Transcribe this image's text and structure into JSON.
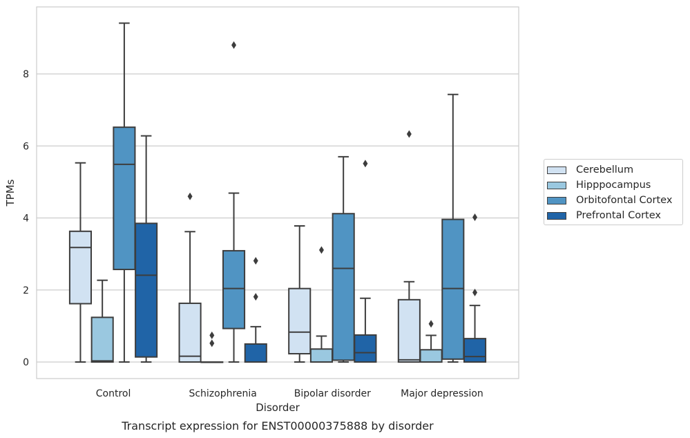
{
  "chart_data": {
    "type": "box",
    "categories": [
      "Control",
      "Schizophrenia",
      "Bipolar disorder",
      "Major depression"
    ],
    "xlabel": "Disorder",
    "ylabel": "TPMs",
    "caption": "Transcript expression for ENST00000375888 by disorder",
    "ylim": [
      -0.45,
      9.75
    ],
    "yticks": [
      0,
      2,
      4,
      6,
      8
    ],
    "ytick_labels": [
      "0",
      "2",
      "4",
      "6",
      "8"
    ],
    "grid": "horizontal",
    "legend_position": "right",
    "series": [
      {
        "name": "Cerebellum",
        "color": "#d1e2f2",
        "boxes": [
          {
            "min": 0.0,
            "q1": 1.62,
            "median": 3.18,
            "q3": 3.63,
            "max": 5.53,
            "outliers": []
          },
          {
            "min": 0.0,
            "q1": 0.0,
            "median": 0.16,
            "q3": 1.63,
            "max": 3.62,
            "outliers": [
              4.6
            ]
          },
          {
            "min": 0.0,
            "q1": 0.23,
            "median": 0.83,
            "q3": 2.04,
            "max": 3.78,
            "outliers": []
          },
          {
            "min": 0.0,
            "q1": 0.0,
            "median": 0.06,
            "q3": 1.73,
            "max": 2.23,
            "outliers": [
              6.33
            ]
          }
        ]
      },
      {
        "name": "Hipppocampus",
        "color": "#9ac8e0",
        "boxes": [
          {
            "min": 0.0,
            "q1": 0.0,
            "median": 0.03,
            "q3": 1.24,
            "max": 2.27,
            "outliers": []
          },
          {
            "min": 0.0,
            "q1": 0.0,
            "median": 0.0,
            "q3": 0.0,
            "max": 0.0,
            "outliers": [
              0.52,
              0.74
            ]
          },
          {
            "min": 0.0,
            "q1": 0.0,
            "median": 0.0,
            "q3": 0.36,
            "max": 0.72,
            "outliers": [
              3.11
            ]
          },
          {
            "min": 0.0,
            "q1": 0.0,
            "median": 0.0,
            "q3": 0.34,
            "max": 0.74,
            "outliers": [
              1.06
            ]
          }
        ]
      },
      {
        "name": "Orbitofontal Cortex",
        "color": "#5094c3",
        "boxes": [
          {
            "min": 0.0,
            "q1": 2.57,
            "median": 5.49,
            "q3": 6.52,
            "max": 9.41,
            "outliers": []
          },
          {
            "min": 0.0,
            "q1": 0.93,
            "median": 2.04,
            "q3": 3.09,
            "max": 4.69,
            "outliers": [
              8.8
            ]
          },
          {
            "min": 0.0,
            "q1": 0.05,
            "median": 2.6,
            "q3": 4.12,
            "max": 5.7,
            "outliers": []
          },
          {
            "min": 0.0,
            "q1": 0.08,
            "median": 2.04,
            "q3": 3.96,
            "max": 7.43,
            "outliers": []
          }
        ]
      },
      {
        "name": "Prefrontal Cortex",
        "color": "#2064a7",
        "boxes": [
          {
            "min": 0.0,
            "q1": 0.14,
            "median": 2.41,
            "q3": 3.85,
            "max": 6.28,
            "outliers": []
          },
          {
            "min": 0.0,
            "q1": 0.0,
            "median": 0.0,
            "q3": 0.5,
            "max": 0.98,
            "outliers": [
              1.81,
              2.81
            ]
          },
          {
            "min": 0.0,
            "q1": 0.0,
            "median": 0.26,
            "q3": 0.75,
            "max": 1.77,
            "outliers": [
              5.51
            ]
          },
          {
            "min": 0.0,
            "q1": 0.0,
            "median": 0.15,
            "q3": 0.65,
            "max": 1.57,
            "outliers": [
              1.93,
              4.02
            ]
          }
        ]
      }
    ]
  }
}
